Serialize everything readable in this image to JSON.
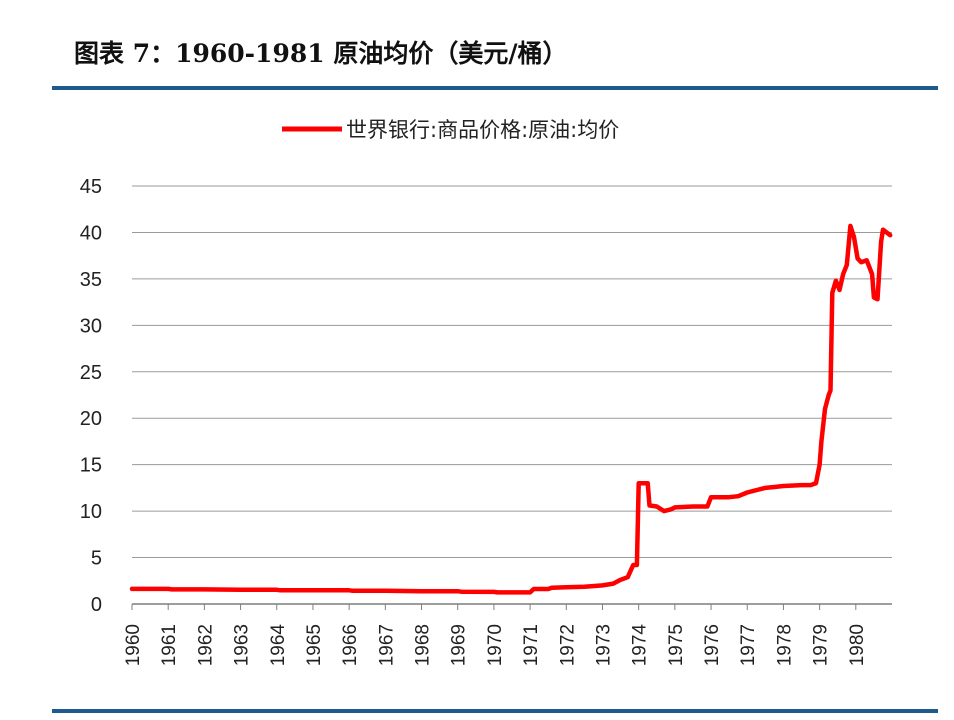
{
  "figure": {
    "title": "图表 7：1960-1981 原油均价（美元/桶）",
    "rule_color": "#1f5a8c"
  },
  "chart_data": {
    "type": "line",
    "title": "",
    "xlabel": "",
    "ylabel": "",
    "xlim": [
      1960.0,
      1981.0
    ],
    "ylim": [
      0,
      45
    ],
    "yticks": [
      0,
      5,
      10,
      15,
      20,
      25,
      30,
      35,
      40,
      45
    ],
    "xticks": [
      "1960",
      "1961",
      "1962",
      "1963",
      "1964",
      "1965",
      "1966",
      "1967",
      "1968",
      "1969",
      "1970",
      "1971",
      "1972",
      "1973",
      "1974",
      "1975",
      "1976",
      "1977",
      "1978",
      "1979",
      "1980"
    ],
    "grid": true,
    "legend_position": "top-center",
    "series": [
      {
        "name": "世界银行:商品价格:原油:均价",
        "color": "#ff0000",
        "x": [
          1960.0,
          1961.0,
          1961.1,
          1962.0,
          1963.0,
          1964.0,
          1964.1,
          1965.0,
          1966.0,
          1966.1,
          1967.0,
          1968.0,
          1969.0,
          1969.1,
          1970.0,
          1970.1,
          1971.0,
          1971.1,
          1971.5,
          1971.6,
          1972.0,
          1972.5,
          1973.0,
          1973.3,
          1973.5,
          1973.7,
          1973.85,
          1973.95,
          1974.0,
          1974.25,
          1974.3,
          1974.5,
          1974.7,
          1974.9,
          1975.0,
          1975.5,
          1975.9,
          1976.0,
          1976.5,
          1976.75,
          1977.0,
          1977.5,
          1977.75,
          1978.0,
          1978.5,
          1978.75,
          1978.9,
          1979.0,
          1979.05,
          1979.15,
          1979.25,
          1979.3,
          1979.35,
          1979.45,
          1979.55,
          1979.65,
          1979.75,
          1979.85,
          1979.95,
          1980.05,
          1980.15,
          1980.3,
          1980.45,
          1980.5,
          1980.6,
          1980.7,
          1980.75,
          1980.85,
          1980.95
        ],
        "values": [
          1.63,
          1.63,
          1.57,
          1.57,
          1.53,
          1.53,
          1.48,
          1.48,
          1.48,
          1.42,
          1.42,
          1.38,
          1.38,
          1.32,
          1.3,
          1.25,
          1.25,
          1.62,
          1.62,
          1.75,
          1.8,
          1.85,
          2.0,
          2.2,
          2.6,
          2.9,
          4.2,
          4.2,
          13.0,
          13.0,
          10.6,
          10.5,
          10.0,
          10.2,
          10.4,
          10.5,
          10.5,
          11.5,
          11.5,
          11.6,
          12.0,
          12.5,
          12.6,
          12.7,
          12.8,
          12.8,
          13.0,
          15.0,
          17.5,
          21.0,
          22.5,
          23.0,
          33.5,
          34.8,
          33.8,
          35.5,
          36.5,
          40.7,
          39.5,
          37.2,
          36.8,
          37.0,
          35.5,
          33.0,
          32.8,
          39.0,
          40.3,
          40.0,
          39.7
        ]
      }
    ]
  }
}
